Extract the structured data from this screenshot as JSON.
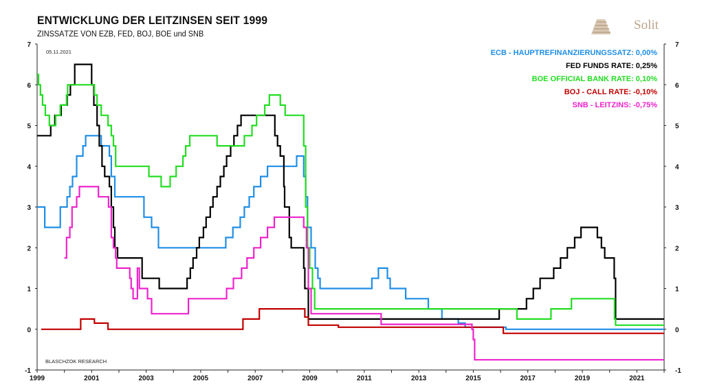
{
  "title": "ENTWICKLUNG DER LEITZINSEN SEIT 1999",
  "subtitle": "ZINSSÄTZE VON EZB, FED, BOJ, BOE und SNB",
  "brand": "Solit",
  "date_stamp": "05.11.2021",
  "source": "BLASCHZOK  RESEARCH",
  "chart_data": {
    "type": "line",
    "x_unit": "year",
    "xlim": [
      1999,
      2022
    ],
    "ylim": [
      -1,
      7
    ],
    "grid": false,
    "legend_position": "top-right",
    "x_ticks": [
      "1999",
      "2001",
      "2003",
      "2005",
      "2007",
      "2009",
      "2011",
      "2013",
      "2015",
      "2017",
      "2019",
      "2021"
    ],
    "x_tick_values": [
      1999,
      2001,
      2003,
      2005,
      2007,
      2009,
      2011,
      2013,
      2015,
      2017,
      2019,
      2021
    ],
    "y_ticks": [
      "-1",
      "0",
      "1",
      "2",
      "3",
      "4",
      "5",
      "6",
      "7"
    ],
    "y_tick_values": [
      -1,
      0,
      1,
      2,
      3,
      4,
      5,
      6,
      7
    ],
    "series": [
      {
        "name": "ECB - HAUPTREFINANZIERUNGSSATZ: 0,00%",
        "color": "#1f8ee6",
        "points": [
          [
            1999.0,
            3.0
          ],
          [
            1999.28,
            2.5
          ],
          [
            1999.85,
            3.0
          ],
          [
            2000.1,
            3.25
          ],
          [
            2000.2,
            3.5
          ],
          [
            2000.3,
            3.75
          ],
          [
            2000.45,
            4.25
          ],
          [
            2000.68,
            4.5
          ],
          [
            2000.78,
            4.75
          ],
          [
            2001.35,
            4.5
          ],
          [
            2001.65,
            4.25
          ],
          [
            2001.72,
            3.75
          ],
          [
            2001.85,
            3.25
          ],
          [
            2002.92,
            2.75
          ],
          [
            2003.2,
            2.5
          ],
          [
            2003.45,
            2.0
          ],
          [
            2005.92,
            2.25
          ],
          [
            2006.18,
            2.5
          ],
          [
            2006.45,
            2.75
          ],
          [
            2006.6,
            3.0
          ],
          [
            2006.78,
            3.25
          ],
          [
            2006.95,
            3.5
          ],
          [
            2007.2,
            3.75
          ],
          [
            2007.45,
            4.0
          ],
          [
            2008.52,
            4.25
          ],
          [
            2008.78,
            3.75
          ],
          [
            2008.85,
            3.25
          ],
          [
            2008.92,
            2.5
          ],
          [
            2009.05,
            2.0
          ],
          [
            2009.2,
            1.5
          ],
          [
            2009.3,
            1.25
          ],
          [
            2009.38,
            1.0
          ],
          [
            2011.28,
            1.25
          ],
          [
            2011.52,
            1.5
          ],
          [
            2011.85,
            1.25
          ],
          [
            2011.95,
            1.0
          ],
          [
            2012.52,
            0.75
          ],
          [
            2013.35,
            0.5
          ],
          [
            2013.85,
            0.25
          ],
          [
            2014.45,
            0.15
          ],
          [
            2014.7,
            0.05
          ],
          [
            2016.2,
            0.0
          ],
          [
            2022.0,
            0.0
          ]
        ]
      },
      {
        "name": "FED FUNDS RATE: 0,25%",
        "color": "#000000",
        "points": [
          [
            1999.0,
            4.75
          ],
          [
            1999.5,
            5.0
          ],
          [
            1999.65,
            5.25
          ],
          [
            1999.88,
            5.5
          ],
          [
            2000.1,
            5.75
          ],
          [
            2000.22,
            6.0
          ],
          [
            2000.38,
            6.5
          ],
          [
            2001.0,
            6.0
          ],
          [
            2001.08,
            5.5
          ],
          [
            2001.2,
            5.0
          ],
          [
            2001.28,
            4.5
          ],
          [
            2001.38,
            4.0
          ],
          [
            2001.48,
            3.75
          ],
          [
            2001.65,
            3.5
          ],
          [
            2001.72,
            3.0
          ],
          [
            2001.8,
            2.5
          ],
          [
            2001.85,
            2.0
          ],
          [
            2001.95,
            1.75
          ],
          [
            2002.85,
            1.25
          ],
          [
            2003.48,
            1.0
          ],
          [
            2004.5,
            1.25
          ],
          [
            2004.62,
            1.5
          ],
          [
            2004.72,
            1.75
          ],
          [
            2004.85,
            2.0
          ],
          [
            2004.95,
            2.25
          ],
          [
            2005.1,
            2.5
          ],
          [
            2005.2,
            2.75
          ],
          [
            2005.35,
            3.0
          ],
          [
            2005.45,
            3.25
          ],
          [
            2005.6,
            3.5
          ],
          [
            2005.72,
            3.75
          ],
          [
            2005.85,
            4.0
          ],
          [
            2005.95,
            4.25
          ],
          [
            2006.1,
            4.5
          ],
          [
            2006.22,
            4.75
          ],
          [
            2006.35,
            5.0
          ],
          [
            2006.48,
            5.25
          ],
          [
            2007.72,
            4.75
          ],
          [
            2007.82,
            4.5
          ],
          [
            2007.92,
            4.25
          ],
          [
            2008.05,
            3.5
          ],
          [
            2008.08,
            3.0
          ],
          [
            2008.25,
            2.25
          ],
          [
            2008.32,
            2.0
          ],
          [
            2008.78,
            1.5
          ],
          [
            2008.82,
            1.0
          ],
          [
            2008.95,
            0.25
          ],
          [
            2015.95,
            0.5
          ],
          [
            2016.95,
            0.75
          ],
          [
            2017.2,
            1.0
          ],
          [
            2017.45,
            1.25
          ],
          [
            2017.95,
            1.5
          ],
          [
            2018.2,
            1.75
          ],
          [
            2018.45,
            2.0
          ],
          [
            2018.72,
            2.25
          ],
          [
            2018.95,
            2.5
          ],
          [
            2019.55,
            2.25
          ],
          [
            2019.7,
            2.0
          ],
          [
            2019.82,
            1.75
          ],
          [
            2020.17,
            1.25
          ],
          [
            2020.22,
            0.25
          ],
          [
            2022.0,
            0.25
          ]
        ]
      },
      {
        "name": "BOE  OFFICIAL  BANK  RATE: 0,10%",
        "color": "#22dd22",
        "points": [
          [
            1999.0,
            6.25
          ],
          [
            1999.05,
            6.0
          ],
          [
            1999.12,
            5.75
          ],
          [
            1999.2,
            5.5
          ],
          [
            1999.3,
            5.25
          ],
          [
            1999.45,
            5.0
          ],
          [
            1999.68,
            5.25
          ],
          [
            1999.85,
            5.5
          ],
          [
            2000.08,
            5.75
          ],
          [
            2000.12,
            6.0
          ],
          [
            2001.1,
            5.75
          ],
          [
            2001.2,
            5.5
          ],
          [
            2001.35,
            5.25
          ],
          [
            2001.6,
            5.0
          ],
          [
            2001.72,
            4.75
          ],
          [
            2001.8,
            4.5
          ],
          [
            2001.88,
            4.0
          ],
          [
            2003.1,
            3.75
          ],
          [
            2003.55,
            3.5
          ],
          [
            2003.88,
            3.75
          ],
          [
            2004.1,
            4.0
          ],
          [
            2004.35,
            4.25
          ],
          [
            2004.45,
            4.5
          ],
          [
            2004.6,
            4.75
          ],
          [
            2005.6,
            4.5
          ],
          [
            2006.6,
            4.75
          ],
          [
            2006.88,
            5.0
          ],
          [
            2007.05,
            5.25
          ],
          [
            2007.35,
            5.5
          ],
          [
            2007.52,
            5.75
          ],
          [
            2007.92,
            5.5
          ],
          [
            2008.1,
            5.25
          ],
          [
            2008.78,
            4.5
          ],
          [
            2008.85,
            3.0
          ],
          [
            2008.92,
            2.0
          ],
          [
            2009.0,
            1.5
          ],
          [
            2009.1,
            1.0
          ],
          [
            2009.18,
            0.5
          ],
          [
            2016.6,
            0.25
          ],
          [
            2017.85,
            0.5
          ],
          [
            2018.6,
            0.75
          ],
          [
            2020.18,
            0.25
          ],
          [
            2020.22,
            0.1
          ],
          [
            2022.0,
            0.1
          ]
        ]
      },
      {
        "name": "BOJ - CALL  RATE: -0,10%",
        "color": "#c00000",
        "points": [
          [
            1999.15,
            0.0
          ],
          [
            2000.6,
            0.25
          ],
          [
            2001.1,
            0.15
          ],
          [
            2001.6,
            0.0
          ],
          [
            2006.55,
            0.25
          ],
          [
            2007.15,
            0.5
          ],
          [
            2008.82,
            0.3
          ],
          [
            2008.95,
            0.1
          ],
          [
            2010.05,
            0.05
          ],
          [
            2016.1,
            -0.1
          ],
          [
            2022.0,
            -0.1
          ]
        ]
      },
      {
        "name": "SNB - LEITZINS: -0,75%",
        "color": "#ee22cc",
        "points": [
          [
            2000.0,
            1.75
          ],
          [
            2000.08,
            2.25
          ],
          [
            2000.2,
            2.5
          ],
          [
            2000.28,
            3.0
          ],
          [
            2000.45,
            3.25
          ],
          [
            2000.55,
            3.5
          ],
          [
            2001.25,
            3.25
          ],
          [
            2001.62,
            3.0
          ],
          [
            2001.72,
            2.25
          ],
          [
            2001.8,
            2.0
          ],
          [
            2001.88,
            1.75
          ],
          [
            2001.92,
            1.5
          ],
          [
            2002.4,
            1.25
          ],
          [
            2002.45,
            1.0
          ],
          [
            2002.52,
            0.75
          ],
          [
            2002.7,
            0.75
          ],
          [
            2002.68,
            1.5
          ],
          [
            2002.75,
            1.0
          ],
          [
            2003.05,
            0.75
          ],
          [
            2003.2,
            0.38
          ],
          [
            2004.55,
            0.75
          ],
          [
            2005.95,
            1.0
          ],
          [
            2006.2,
            1.25
          ],
          [
            2006.5,
            1.5
          ],
          [
            2006.7,
            1.75
          ],
          [
            2006.95,
            2.0
          ],
          [
            2007.2,
            2.25
          ],
          [
            2007.45,
            2.5
          ],
          [
            2007.7,
            2.75
          ],
          [
            2008.78,
            2.5
          ],
          [
            2008.88,
            2.0
          ],
          [
            2008.95,
            1.0
          ],
          [
            2009.05,
            0.38
          ],
          [
            2011.62,
            0.12
          ],
          [
            2014.95,
            0.0
          ],
          [
            2015.0,
            -0.25
          ],
          [
            2015.05,
            -0.75
          ],
          [
            2022.0,
            -0.75
          ]
        ]
      }
    ]
  }
}
